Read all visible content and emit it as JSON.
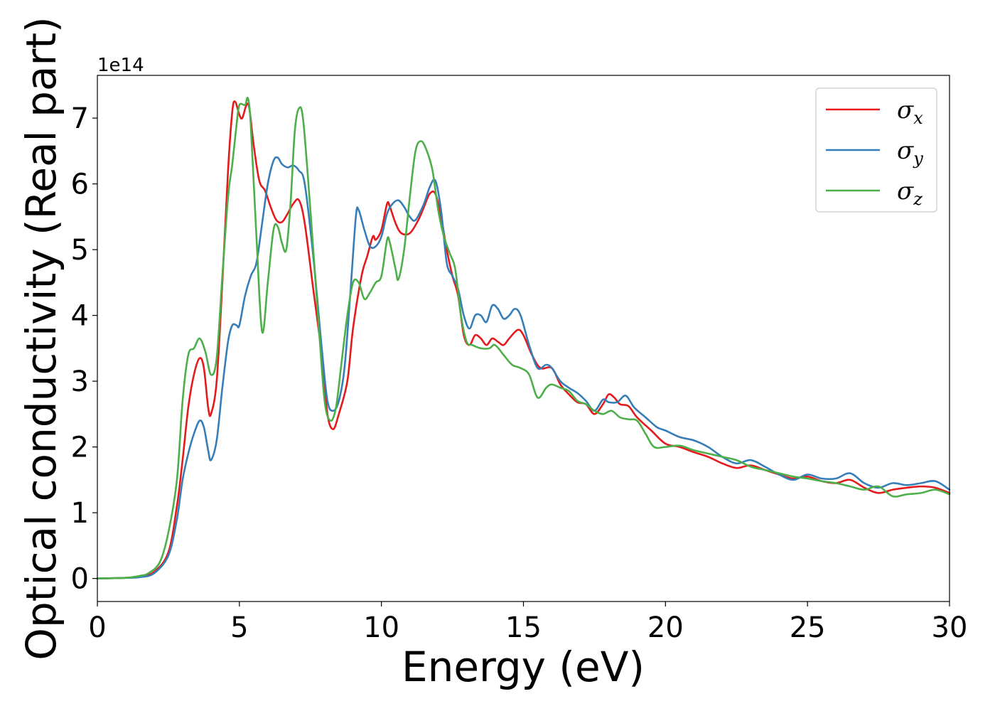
{
  "chart_data": {
    "type": "line",
    "xlabel": "Energy (eV)",
    "ylabel": "Optical conductivity (Real part)",
    "y_offset_label": "1e14",
    "y_multiplier": 100000000000000.0,
    "xlim": [
      0,
      30
    ],
    "ylim": [
      -0.35,
      7.65
    ],
    "xticks": [
      0,
      5,
      10,
      15,
      20,
      25,
      30
    ],
    "yticks": [
      0,
      1,
      2,
      3,
      4,
      5,
      6,
      7
    ],
    "grid": false,
    "legend_position": "top-right",
    "series": [
      {
        "name": "σx",
        "symbol": "σ",
        "subscript": "x",
        "color": "#e41a1c",
        "points": [
          [
            0,
            0
          ],
          [
            1,
            0.01
          ],
          [
            1.5,
            0.03
          ],
          [
            2,
            0.1
          ],
          [
            2.5,
            0.4
          ],
          [
            2.8,
            1.1
          ],
          [
            3.0,
            1.8
          ],
          [
            3.2,
            2.6
          ],
          [
            3.4,
            3.1
          ],
          [
            3.6,
            3.35
          ],
          [
            3.75,
            3.2
          ],
          [
            3.9,
            2.6
          ],
          [
            4.0,
            2.5
          ],
          [
            4.2,
            3.0
          ],
          [
            4.4,
            4.5
          ],
          [
            4.6,
            6.2
          ],
          [
            4.75,
            7.1
          ],
          [
            4.85,
            7.25
          ],
          [
            5.0,
            7.05
          ],
          [
            5.1,
            7.0
          ],
          [
            5.25,
            7.2
          ],
          [
            5.35,
            7.15
          ],
          [
            5.5,
            6.6
          ],
          [
            5.7,
            6.05
          ],
          [
            5.9,
            5.9
          ],
          [
            6.1,
            5.65
          ],
          [
            6.3,
            5.45
          ],
          [
            6.5,
            5.42
          ],
          [
            6.7,
            5.55
          ],
          [
            6.9,
            5.7
          ],
          [
            7.1,
            5.75
          ],
          [
            7.3,
            5.4
          ],
          [
            7.6,
            4.4
          ],
          [
            7.9,
            3.4
          ],
          [
            8.1,
            2.5
          ],
          [
            8.3,
            2.27
          ],
          [
            8.5,
            2.5
          ],
          [
            8.8,
            3.0
          ],
          [
            9.0,
            3.8
          ],
          [
            9.3,
            4.6
          ],
          [
            9.5,
            4.9
          ],
          [
            9.7,
            5.2
          ],
          [
            9.8,
            5.15
          ],
          [
            10.0,
            5.3
          ],
          [
            10.2,
            5.7
          ],
          [
            10.3,
            5.65
          ],
          [
            10.5,
            5.4
          ],
          [
            10.7,
            5.25
          ],
          [
            11.0,
            5.25
          ],
          [
            11.3,
            5.45
          ],
          [
            11.5,
            5.65
          ],
          [
            11.7,
            5.85
          ],
          [
            11.9,
            5.85
          ],
          [
            12.1,
            5.5
          ],
          [
            12.3,
            5.0
          ],
          [
            12.5,
            4.6
          ],
          [
            12.7,
            4.3
          ],
          [
            12.9,
            3.7
          ],
          [
            13.1,
            3.55
          ],
          [
            13.3,
            3.7
          ],
          [
            13.5,
            3.65
          ],
          [
            13.7,
            3.55
          ],
          [
            13.9,
            3.65
          ],
          [
            14.1,
            3.6
          ],
          [
            14.3,
            3.55
          ],
          [
            14.5,
            3.65
          ],
          [
            14.8,
            3.78
          ],
          [
            15.0,
            3.7
          ],
          [
            15.3,
            3.4
          ],
          [
            15.6,
            3.2
          ],
          [
            16.0,
            3.2
          ],
          [
            16.3,
            2.95
          ],
          [
            16.6,
            2.8
          ],
          [
            16.9,
            2.68
          ],
          [
            17.2,
            2.65
          ],
          [
            17.5,
            2.5
          ],
          [
            17.8,
            2.65
          ],
          [
            18.0,
            2.8
          ],
          [
            18.2,
            2.75
          ],
          [
            18.4,
            2.65
          ],
          [
            18.7,
            2.62
          ],
          [
            19.0,
            2.45
          ],
          [
            19.5,
            2.25
          ],
          [
            20.0,
            2.05
          ],
          [
            20.5,
            2.0
          ],
          [
            21.0,
            1.92
          ],
          [
            21.5,
            1.85
          ],
          [
            22.0,
            1.75
          ],
          [
            22.5,
            1.68
          ],
          [
            23.0,
            1.72
          ],
          [
            23.5,
            1.65
          ],
          [
            24.0,
            1.58
          ],
          [
            24.5,
            1.52
          ],
          [
            25.0,
            1.55
          ],
          [
            25.5,
            1.48
          ],
          [
            26.0,
            1.45
          ],
          [
            26.5,
            1.5
          ],
          [
            27.0,
            1.38
          ],
          [
            27.5,
            1.3
          ],
          [
            28.0,
            1.35
          ],
          [
            28.5,
            1.38
          ],
          [
            29.0,
            1.4
          ],
          [
            29.5,
            1.38
          ],
          [
            30.0,
            1.3
          ]
        ]
      },
      {
        "name": "σy",
        "symbol": "σ",
        "subscript": "y",
        "color": "#377eb8",
        "points": [
          [
            0,
            0
          ],
          [
            1,
            0.01
          ],
          [
            1.5,
            0.02
          ],
          [
            2,
            0.08
          ],
          [
            2.5,
            0.35
          ],
          [
            2.8,
            0.9
          ],
          [
            3.0,
            1.5
          ],
          [
            3.2,
            1.9
          ],
          [
            3.4,
            2.2
          ],
          [
            3.6,
            2.4
          ],
          [
            3.75,
            2.3
          ],
          [
            3.9,
            1.95
          ],
          [
            4.0,
            1.8
          ],
          [
            4.2,
            2.1
          ],
          [
            4.4,
            2.9
          ],
          [
            4.6,
            3.6
          ],
          [
            4.75,
            3.85
          ],
          [
            4.9,
            3.85
          ],
          [
            5.0,
            3.85
          ],
          [
            5.2,
            4.3
          ],
          [
            5.4,
            4.6
          ],
          [
            5.6,
            4.8
          ],
          [
            5.8,
            5.4
          ],
          [
            6.0,
            6.0
          ],
          [
            6.2,
            6.35
          ],
          [
            6.35,
            6.4
          ],
          [
            6.5,
            6.3
          ],
          [
            6.7,
            6.25
          ],
          [
            6.9,
            6.28
          ],
          [
            7.1,
            6.2
          ],
          [
            7.3,
            6.0
          ],
          [
            7.6,
            4.9
          ],
          [
            7.9,
            3.5
          ],
          [
            8.1,
            2.7
          ],
          [
            8.3,
            2.55
          ],
          [
            8.5,
            2.7
          ],
          [
            8.7,
            3.2
          ],
          [
            8.9,
            4.3
          ],
          [
            9.1,
            5.5
          ],
          [
            9.2,
            5.6
          ],
          [
            9.4,
            5.3
          ],
          [
            9.6,
            5.05
          ],
          [
            9.8,
            5.05
          ],
          [
            10.0,
            5.2
          ],
          [
            10.2,
            5.55
          ],
          [
            10.4,
            5.7
          ],
          [
            10.6,
            5.75
          ],
          [
            10.8,
            5.65
          ],
          [
            11.0,
            5.5
          ],
          [
            11.2,
            5.45
          ],
          [
            11.5,
            5.7
          ],
          [
            11.7,
            5.95
          ],
          [
            11.9,
            6.05
          ],
          [
            12.1,
            5.6
          ],
          [
            12.3,
            4.8
          ],
          [
            12.5,
            4.6
          ],
          [
            12.7,
            4.4
          ],
          [
            12.9,
            4.0
          ],
          [
            13.1,
            3.8
          ],
          [
            13.3,
            4.0
          ],
          [
            13.5,
            4.0
          ],
          [
            13.7,
            3.9
          ],
          [
            13.9,
            4.15
          ],
          [
            14.1,
            4.1
          ],
          [
            14.3,
            3.95
          ],
          [
            14.5,
            4.0
          ],
          [
            14.7,
            4.1
          ],
          [
            14.9,
            4.0
          ],
          [
            15.2,
            3.55
          ],
          [
            15.5,
            3.2
          ],
          [
            15.8,
            3.25
          ],
          [
            16.0,
            3.2
          ],
          [
            16.3,
            3.0
          ],
          [
            16.6,
            2.9
          ],
          [
            16.9,
            2.82
          ],
          [
            17.2,
            2.7
          ],
          [
            17.5,
            2.55
          ],
          [
            17.8,
            2.72
          ],
          [
            18.0,
            2.68
          ],
          [
            18.3,
            2.68
          ],
          [
            18.6,
            2.78
          ],
          [
            18.9,
            2.6
          ],
          [
            19.3,
            2.45
          ],
          [
            19.7,
            2.3
          ],
          [
            20.0,
            2.25
          ],
          [
            20.5,
            2.15
          ],
          [
            21.0,
            2.1
          ],
          [
            21.5,
            2.0
          ],
          [
            22.0,
            1.85
          ],
          [
            22.5,
            1.75
          ],
          [
            23.0,
            1.8
          ],
          [
            23.5,
            1.7
          ],
          [
            24.0,
            1.58
          ],
          [
            24.5,
            1.5
          ],
          [
            25.0,
            1.58
          ],
          [
            25.5,
            1.52
          ],
          [
            26.0,
            1.52
          ],
          [
            26.5,
            1.6
          ],
          [
            27.0,
            1.45
          ],
          [
            27.5,
            1.38
          ],
          [
            28.0,
            1.45
          ],
          [
            28.5,
            1.42
          ],
          [
            29.0,
            1.45
          ],
          [
            29.5,
            1.48
          ],
          [
            30.0,
            1.35
          ]
        ]
      },
      {
        "name": "σz",
        "symbol": "σ",
        "subscript": "z",
        "color": "#4daf4a",
        "points": [
          [
            0,
            0
          ],
          [
            1,
            0.01
          ],
          [
            1.5,
            0.04
          ],
          [
            1.8,
            0.08
          ],
          [
            2.2,
            0.25
          ],
          [
            2.5,
            0.7
          ],
          [
            2.8,
            1.5
          ],
          [
            3.0,
            2.7
          ],
          [
            3.2,
            3.4
          ],
          [
            3.4,
            3.5
          ],
          [
            3.6,
            3.65
          ],
          [
            3.8,
            3.45
          ],
          [
            4.0,
            3.1
          ],
          [
            4.2,
            3.35
          ],
          [
            4.4,
            4.6
          ],
          [
            4.6,
            5.8
          ],
          [
            4.75,
            6.3
          ],
          [
            4.9,
            6.9
          ],
          [
            5.0,
            7.2
          ],
          [
            5.2,
            7.2
          ],
          [
            5.3,
            7.3
          ],
          [
            5.4,
            6.9
          ],
          [
            5.6,
            5.2
          ],
          [
            5.8,
            3.75
          ],
          [
            6.0,
            4.5
          ],
          [
            6.2,
            5.3
          ],
          [
            6.35,
            5.35
          ],
          [
            6.5,
            5.1
          ],
          [
            6.65,
            5.0
          ],
          [
            6.8,
            5.7
          ],
          [
            6.95,
            6.8
          ],
          [
            7.1,
            7.15
          ],
          [
            7.25,
            6.95
          ],
          [
            7.5,
            5.6
          ],
          [
            7.8,
            3.8
          ],
          [
            8.0,
            2.7
          ],
          [
            8.2,
            2.4
          ],
          [
            8.4,
            2.6
          ],
          [
            8.6,
            3.3
          ],
          [
            8.8,
            4.0
          ],
          [
            9.0,
            4.5
          ],
          [
            9.2,
            4.5
          ],
          [
            9.4,
            4.25
          ],
          [
            9.6,
            4.35
          ],
          [
            9.8,
            4.5
          ],
          [
            10.0,
            4.6
          ],
          [
            10.2,
            5.15
          ],
          [
            10.3,
            5.1
          ],
          [
            10.5,
            4.7
          ],
          [
            10.6,
            4.55
          ],
          [
            10.8,
            5.0
          ],
          [
            11.0,
            5.8
          ],
          [
            11.2,
            6.5
          ],
          [
            11.4,
            6.65
          ],
          [
            11.6,
            6.5
          ],
          [
            11.8,
            6.2
          ],
          [
            12.0,
            5.6
          ],
          [
            12.2,
            5.2
          ],
          [
            12.4,
            4.95
          ],
          [
            12.6,
            4.7
          ],
          [
            12.8,
            4.0
          ],
          [
            13.0,
            3.6
          ],
          [
            13.2,
            3.55
          ],
          [
            13.5,
            3.5
          ],
          [
            13.8,
            3.5
          ],
          [
            14.0,
            3.55
          ],
          [
            14.3,
            3.4
          ],
          [
            14.6,
            3.25
          ],
          [
            14.9,
            3.2
          ],
          [
            15.2,
            3.1
          ],
          [
            15.5,
            2.75
          ],
          [
            15.8,
            2.9
          ],
          [
            16.0,
            2.95
          ],
          [
            16.3,
            2.9
          ],
          [
            16.6,
            2.85
          ],
          [
            16.9,
            2.7
          ],
          [
            17.2,
            2.65
          ],
          [
            17.5,
            2.55
          ],
          [
            17.8,
            2.5
          ],
          [
            18.1,
            2.55
          ],
          [
            18.4,
            2.45
          ],
          [
            18.7,
            2.42
          ],
          [
            19.0,
            2.4
          ],
          [
            19.3,
            2.2
          ],
          [
            19.6,
            2.0
          ],
          [
            20.0,
            2.0
          ],
          [
            20.5,
            2.02
          ],
          [
            21.0,
            1.95
          ],
          [
            21.5,
            1.9
          ],
          [
            22.0,
            1.85
          ],
          [
            22.5,
            1.8
          ],
          [
            23.0,
            1.7
          ],
          [
            23.5,
            1.65
          ],
          [
            24.0,
            1.6
          ],
          [
            24.5,
            1.55
          ],
          [
            25.0,
            1.52
          ],
          [
            25.5,
            1.48
          ],
          [
            26.0,
            1.45
          ],
          [
            26.5,
            1.4
          ],
          [
            27.0,
            1.35
          ],
          [
            27.5,
            1.4
          ],
          [
            28.0,
            1.25
          ],
          [
            28.5,
            1.28
          ],
          [
            29.0,
            1.3
          ],
          [
            29.5,
            1.35
          ],
          [
            30.0,
            1.28
          ]
        ]
      }
    ]
  }
}
